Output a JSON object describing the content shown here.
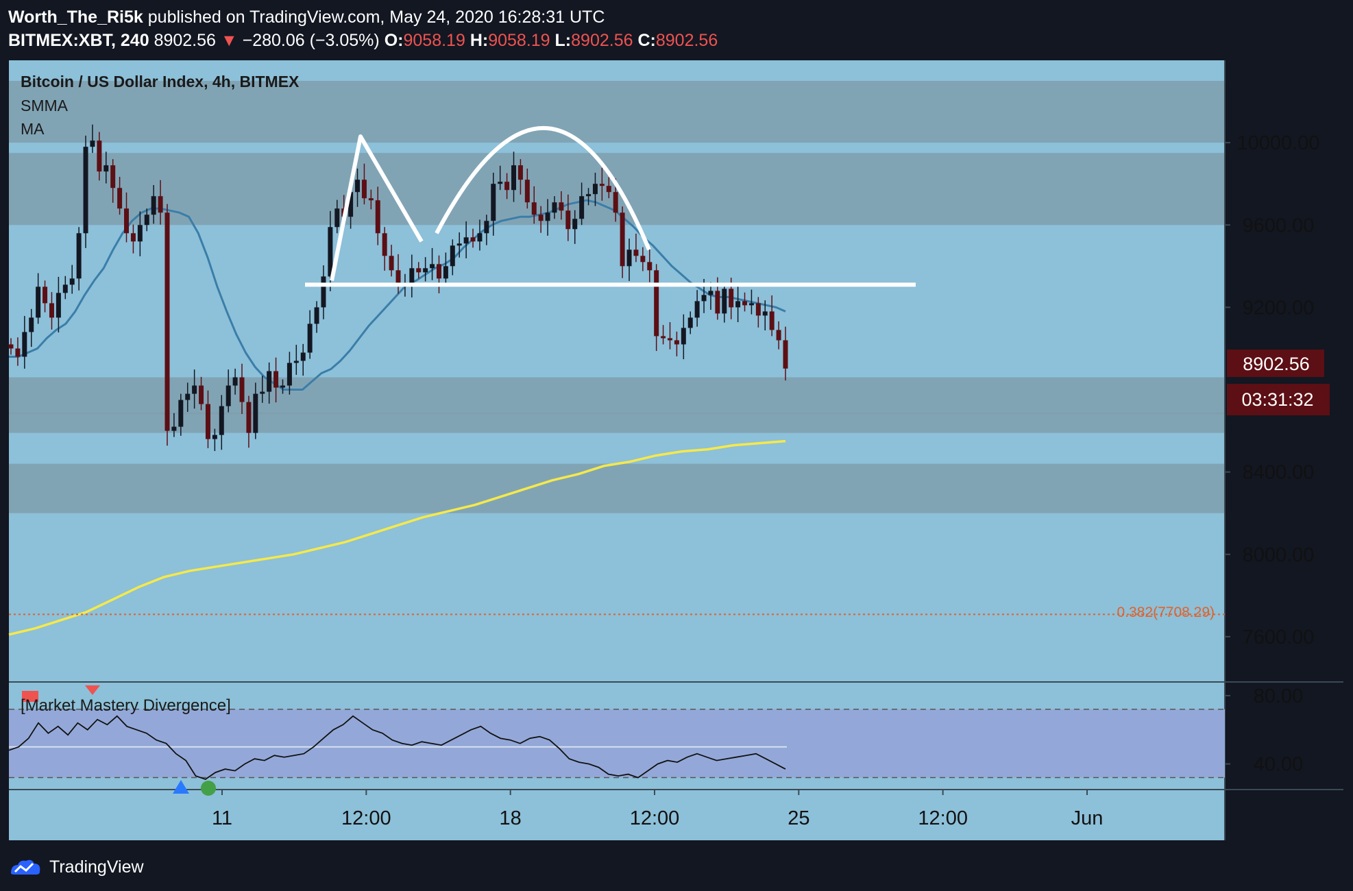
{
  "header": {
    "author": "Worth_The_Ri5k",
    "published": "published on TradingView.com, May 24, 2020 16:28:31 UTC",
    "symbol": "BITMEX:XBT, 240",
    "last": "8902.56",
    "change_arrow": "▼",
    "change": "−280.06 (−3.05%)",
    "o_label": "O:",
    "o": "9058.19",
    "h_label": "H:",
    "h": "9058.19",
    "l_label": "L:",
    "l": "8902.56",
    "c_label": "C:",
    "c": "8902.56"
  },
  "legend": {
    "title": "Bitcoin / US Dollar Index, 4h, BITMEX",
    "smma": "SMMA",
    "ma": "MA"
  },
  "price_tag": {
    "price": "8902.56",
    "countdown": "03:31:32"
  },
  "fib_label": "0.382(7708.29)",
  "oscillator": {
    "name": "[Market Mastery Divergence]"
  },
  "footer": {
    "brand": "TradingView",
    "logo_icon": "tradingview-logo-icon"
  },
  "colors": {
    "background": "#131722",
    "plot_bg": "#8dc0d9",
    "zone": "#7f9fae",
    "up_candle": "#131722",
    "down_candle": "#5c0f14",
    "smma": "#3a7ea8",
    "ma": "#f5e94a",
    "pattern": "#ffffff",
    "fib": "#e0622a",
    "osc_band": "#93a8d8"
  },
  "chart_data": [
    {
      "type": "candlestick",
      "title": "Bitcoin / US Dollar Index, 4h, BITMEX",
      "x_ticks": [
        "11",
        "12:00",
        "18",
        "12:00",
        "25",
        "12:00",
        "Jun"
      ],
      "y_ticks": [
        "10000.00",
        "9600.00",
        "9200.00",
        "8400.00",
        "8000.00",
        "7600.00"
      ],
      "ylim": [
        7380,
        10400
      ],
      "grid": false,
      "horizontal_zones": [
        [
          10000,
          10300
        ],
        [
          9600,
          9950
        ],
        [
          8680,
          8860
        ],
        [
          8590,
          8690
        ],
        [
          8200,
          8440
        ]
      ],
      "neckline": 9310,
      "fib_level": {
        "label": "0.382",
        "value": 7708.29
      },
      "closes": [
        9000,
        8960,
        9080,
        9150,
        9300,
        9220,
        9150,
        9270,
        9310,
        9340,
        9560,
        9980,
        10010,
        9860,
        9890,
        9780,
        9680,
        9560,
        9520,
        9600,
        9650,
        9740,
        9660,
        8600,
        8620,
        8750,
        8780,
        8820,
        8730,
        8560,
        8580,
        8720,
        8820,
        8860,
        8740,
        8590,
        8780,
        8790,
        8890,
        8810,
        8820,
        8930,
        8940,
        8980,
        9120,
        9200,
        9350,
        9590,
        9680,
        9640,
        9760,
        9820,
        9730,
        9720,
        9560,
        9450,
        9380,
        9310,
        9320,
        9390,
        9370,
        9390,
        9410,
        9340,
        9400,
        9500,
        9510,
        9540,
        9520,
        9560,
        9620,
        9800,
        9810,
        9770,
        9890,
        9820,
        9710,
        9650,
        9620,
        9660,
        9710,
        9670,
        9580,
        9630,
        9740,
        9750,
        9800,
        9790,
        9760,
        9660,
        9400,
        9480,
        9450,
        9420,
        9380,
        9060,
        9050,
        9040,
        9020,
        9100,
        9150,
        9230,
        9260,
        9280,
        9170,
        9290,
        9200,
        9230,
        9210,
        9220,
        9160,
        9180,
        9090,
        9040,
        8902.56
      ],
      "series": [
        {
          "name": "SMMA",
          "values": [
            8960,
            8960,
            8980,
            9000,
            9050,
            9090,
            9120,
            9180,
            9260,
            9330,
            9390,
            9480,
            9560,
            9620,
            9660,
            9680,
            9680,
            9670,
            9660,
            9640,
            9560,
            9440,
            9300,
            9180,
            9070,
            8980,
            8910,
            8860,
            8830,
            8800,
            8800,
            8800,
            8840,
            8880,
            8900,
            8940,
            8990,
            9050,
            9110,
            9160,
            9210,
            9260,
            9310,
            9330,
            9360,
            9390,
            9410,
            9440,
            9490,
            9530,
            9570,
            9600,
            9620,
            9630,
            9640,
            9640,
            9650,
            9660,
            9680,
            9700,
            9710,
            9720,
            9710,
            9690,
            9670,
            9630,
            9590,
            9540,
            9500,
            9450,
            9400,
            9360,
            9320,
            9290,
            9260,
            9250,
            9250,
            9240,
            9230,
            9220,
            9210,
            9200,
            9180
          ]
        },
        {
          "name": "MA",
          "values": [
            7610,
            7640,
            7680,
            7720,
            7780,
            7840,
            7890,
            7920,
            7940,
            7960,
            7980,
            8000,
            8030,
            8060,
            8100,
            8140,
            8180,
            8210,
            8240,
            8280,
            8320,
            8360,
            8390,
            8430,
            8450,
            8480,
            8500,
            8510,
            8530,
            8540,
            8550
          ]
        }
      ]
    },
    {
      "type": "line",
      "title": "[Market Mastery Divergence]",
      "y_ticks": [
        "80.00",
        "40.00"
      ],
      "ylim": [
        25,
        88
      ],
      "band": [
        32,
        72
      ],
      "midline": 50,
      "values": [
        48,
        50,
        55,
        64,
        58,
        62,
        57,
        64,
        60,
        66,
        63,
        68,
        62,
        60,
        58,
        54,
        52,
        46,
        42,
        33,
        31,
        35,
        37,
        36,
        40,
        43,
        42,
        45,
        44,
        45,
        46,
        50,
        55,
        60,
        63,
        68,
        64,
        60,
        58,
        54,
        52,
        51,
        53,
        52,
        51,
        54,
        57,
        60,
        62,
        58,
        55,
        54,
        52,
        55,
        56,
        54,
        49,
        43,
        41,
        40,
        38,
        34,
        33,
        34,
        32,
        36,
        40,
        42,
        41,
        44,
        46,
        44,
        42,
        43,
        44,
        45,
        46,
        43,
        40,
        37
      ]
    }
  ]
}
